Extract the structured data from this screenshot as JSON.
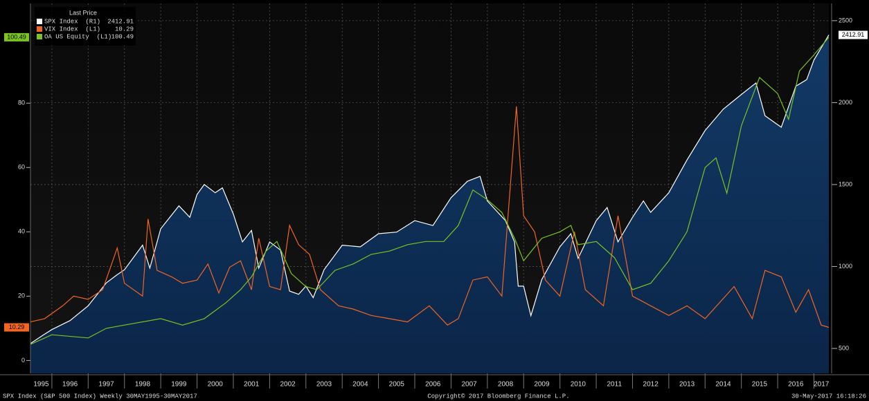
{
  "chart_data": {
    "type": "line",
    "legend_title": "Last Price",
    "footer_left": "SPX Index (S&P 500 Index)  Weekly 30MAY1995-30MAY2017",
    "footer_center": "Copyright© 2017 Bloomberg Finance L.P.",
    "footer_right": "30-May-2017 16:18:26",
    "legend": "upper left",
    "grid": true,
    "xlim": [
      1995.41,
      2017.41
    ],
    "xticks": [
      {
        "value": 1995,
        "label": "1995"
      },
      {
        "value": 1996,
        "label": "1996"
      },
      {
        "value": 1997,
        "label": "1997"
      },
      {
        "value": 1998,
        "label": "1998"
      },
      {
        "value": 1999,
        "label": "1999"
      },
      {
        "value": 2000,
        "label": "2000"
      },
      {
        "value": 2001,
        "label": "2001"
      },
      {
        "value": 2002,
        "label": "2002"
      },
      {
        "value": 2003,
        "label": "2003"
      },
      {
        "value": 2004,
        "label": "2004"
      },
      {
        "value": 2005,
        "label": "2005"
      },
      {
        "value": 2006,
        "label": "2006"
      },
      {
        "value": 2007,
        "label": "2007"
      },
      {
        "value": 2008,
        "label": "2008"
      },
      {
        "value": 2009,
        "label": "2009"
      },
      {
        "value": 2010,
        "label": "2010"
      },
      {
        "value": 2011,
        "label": "2011"
      },
      {
        "value": 2012,
        "label": "2012"
      },
      {
        "value": 2013,
        "label": "2013"
      },
      {
        "value": 2014,
        "label": "2014"
      },
      {
        "value": 2015,
        "label": "2015"
      },
      {
        "value": 2016,
        "label": "2016"
      },
      {
        "value": 2017,
        "label": "2017"
      }
    ],
    "ylim": [
      -4,
      111
    ],
    "yticks": [
      0,
      20,
      40,
      60,
      80
    ],
    "y2lim": [
      348,
      2605
    ],
    "y2ticks": [
      500,
      1000,
      1500,
      2000,
      2500
    ],
    "series": [
      {
        "name": "SPX Index  (R1)",
        "color": "#ffffff",
        "axis": "y2",
        "fill": true,
        "x": [
          1995.41,
          1995.75,
          1996.0,
          1996.5,
          1997.0,
          1997.5,
          1997.8,
          1998.0,
          1998.5,
          1998.7,
          1999.0,
          1999.5,
          1999.8,
          2000.0,
          2000.2,
          2000.5,
          2000.7,
          2001.0,
          2001.25,
          2001.5,
          2001.7,
          2002.0,
          2002.3,
          2002.55,
          2002.8,
          2003.0,
          2003.2,
          2003.5,
          2004.0,
          2004.5,
          2005.0,
          2005.5,
          2006.0,
          2006.5,
          2007.0,
          2007.45,
          2007.8,
          2008.0,
          2008.5,
          2008.75,
          2008.85,
          2009.0,
          2009.2,
          2009.5,
          2010.0,
          2010.3,
          2010.5,
          2011.0,
          2011.3,
          2011.6,
          2012.0,
          2012.3,
          2012.5,
          2013.0,
          2013.5,
          2014.0,
          2014.5,
          2015.0,
          2015.4,
          2015.65,
          2016.1,
          2016.5,
          2016.8,
          2017.0,
          2017.41
        ],
        "values": [
          530,
          580,
          615,
          670,
          760,
          900,
          950,
          980,
          1130,
          990,
          1230,
          1370,
          1300,
          1440,
          1500,
          1450,
          1480,
          1320,
          1150,
          1220,
          990,
          1150,
          1100,
          850,
          830,
          880,
          810,
          980,
          1130,
          1120,
          1200,
          1210,
          1280,
          1250,
          1420,
          1520,
          1550,
          1400,
          1280,
          1150,
          880,
          880,
          700,
          920,
          1120,
          1200,
          1050,
          1280,
          1360,
          1150,
          1300,
          1400,
          1330,
          1450,
          1650,
          1830,
          1960,
          2050,
          2120,
          1920,
          1850,
          2100,
          2140,
          2260,
          2412.91
        ]
      },
      {
        "name": "VIX Index  (L1)",
        "color": "#f26522",
        "axis": "y",
        "x": [
          1995.41,
          1995.8,
          1996.3,
          1996.6,
          1997.0,
          1997.4,
          1997.8,
          1998.0,
          1998.5,
          1998.65,
          1998.9,
          1999.3,
          1999.6,
          2000.0,
          2000.3,
          2000.6,
          2000.9,
          2001.2,
          2001.5,
          2001.7,
          2002.0,
          2002.3,
          2002.55,
          2002.8,
          2003.1,
          2003.4,
          2003.9,
          2004.3,
          2004.8,
          2005.3,
          2005.8,
          2006.4,
          2006.9,
          2007.2,
          2007.6,
          2008.0,
          2008.4,
          2008.8,
          2009.0,
          2009.3,
          2009.6,
          2010.0,
          2010.4,
          2010.7,
          2011.2,
          2011.6,
          2012.0,
          2012.5,
          2013.0,
          2013.5,
          2014.0,
          2014.8,
          2015.3,
          2015.65,
          2016.1,
          2016.5,
          2016.85,
          2017.2,
          2017.41
        ],
        "values": [
          12,
          13,
          17,
          20,
          19,
          22,
          35,
          24,
          20,
          44,
          28,
          26,
          24,
          25,
          30,
          21,
          29,
          31,
          22,
          38,
          23,
          22,
          42,
          36,
          33,
          22,
          17,
          16,
          14,
          13,
          12,
          17,
          11,
          13,
          25,
          26,
          20,
          79,
          45,
          40,
          25,
          20,
          40,
          22,
          17,
          45,
          20,
          17,
          14,
          17,
          13,
          23,
          13,
          28,
          26,
          15,
          22,
          11,
          10.29
        ]
      },
      {
        "name": "OA US Equity  (L1)",
        "color": "#7ac520",
        "axis": "y",
        "x": [
          1995.41,
          1996.0,
          1997.0,
          1997.5,
          1998.0,
          1999.0,
          1999.6,
          2000.2,
          2000.8,
          2001.2,
          2001.5,
          2001.9,
          2002.2,
          2002.6,
          2003.0,
          2003.3,
          2003.8,
          2004.3,
          2004.8,
          2005.3,
          2005.8,
          2006.3,
          2006.8,
          2007.2,
          2007.6,
          2008.0,
          2008.4,
          2008.75,
          2009.0,
          2009.5,
          2010.0,
          2010.3,
          2010.5,
          2011.0,
          2011.5,
          2012.0,
          2012.5,
          2013.0,
          2013.5,
          2014.0,
          2014.3,
          2014.6,
          2015.0,
          2015.5,
          2016.0,
          2016.3,
          2016.6,
          2017.0,
          2017.41
        ],
        "values": [
          5,
          8,
          7,
          10,
          11,
          13,
          11,
          13,
          18,
          22,
          26,
          34,
          37,
          27,
          23,
          22,
          28,
          30,
          33,
          34,
          36,
          37,
          37,
          42,
          53,
          50,
          46,
          38,
          31,
          38,
          40,
          42,
          36,
          37,
          32,
          22,
          24,
          31,
          40,
          60,
          63,
          52,
          73,
          88,
          83,
          75,
          90,
          95,
          100.49
        ]
      }
    ]
  }
}
